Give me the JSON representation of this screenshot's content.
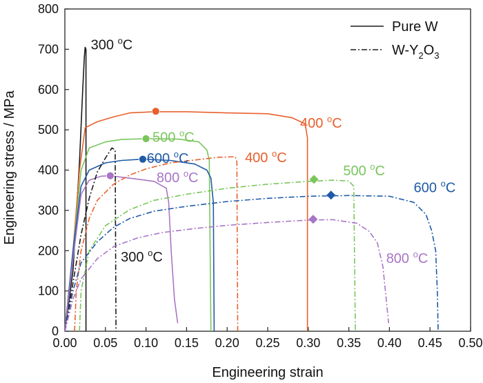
{
  "chart_data": {
    "type": "line",
    "title": "",
    "xlabel": "Engineering strain",
    "ylabel": "Engineering stress / MPa",
    "xlim": [
      0,
      0.5
    ],
    "ylim": [
      0,
      800
    ],
    "xticks": [
      "0.00",
      "0.05",
      "0.10",
      "0.15",
      "0.20",
      "0.25",
      "0.30",
      "0.35",
      "0.40",
      "0.45",
      "0.50"
    ],
    "yticks": [
      "0",
      "100",
      "200",
      "300",
      "400",
      "500",
      "600",
      "700",
      "800"
    ],
    "grid": false,
    "legend": {
      "position": "top-right",
      "entries": [
        {
          "label": "Pure W",
          "dash": "solid"
        },
        {
          "label": "W-Y",
          "sub": "2",
          "label2": "O",
          "sub2": "3",
          "dash": "dashdot"
        }
      ]
    },
    "colors": {
      "black": "#1a1a1a",
      "orange": "#e8602c",
      "green": "#7ac55c",
      "blue": "#1f5aa6",
      "purple": "#a875c6"
    },
    "series": [
      {
        "material": "Pure W",
        "temperature": "300 °C",
        "color": "black",
        "dash": "solid",
        "points": [
          [
            0.0,
            0
          ],
          [
            0.01,
            150
          ],
          [
            0.018,
            420
          ],
          [
            0.022,
            600
          ],
          [
            0.024,
            680
          ],
          [
            0.025,
            705
          ],
          [
            0.026,
            700
          ],
          [
            0.026,
            0
          ]
        ]
      },
      {
        "material": "Pure W",
        "temperature": "400 °C",
        "color": "orange",
        "dash": "solid",
        "points": [
          [
            0.0,
            0
          ],
          [
            0.01,
            200
          ],
          [
            0.018,
            400
          ],
          [
            0.025,
            505
          ],
          [
            0.04,
            520
          ],
          [
            0.06,
            532
          ],
          [
            0.08,
            542
          ],
          [
            0.11,
            545
          ],
          [
            0.15,
            545
          ],
          [
            0.2,
            542
          ],
          [
            0.25,
            540
          ],
          [
            0.28,
            530
          ],
          [
            0.296,
            515
          ],
          [
            0.299,
            480
          ],
          [
            0.299,
            0
          ]
        ],
        "marker": {
          "shape": "circle",
          "x": 0.112,
          "y": 546
        }
      },
      {
        "material": "Pure W",
        "temperature": "500 °C",
        "color": "green",
        "dash": "solid",
        "points": [
          [
            0.0,
            0
          ],
          [
            0.01,
            200
          ],
          [
            0.02,
            400
          ],
          [
            0.03,
            455
          ],
          [
            0.05,
            470
          ],
          [
            0.07,
            476
          ],
          [
            0.1,
            478
          ],
          [
            0.14,
            477
          ],
          [
            0.165,
            470
          ],
          [
            0.175,
            450
          ],
          [
            0.178,
            425
          ],
          [
            0.18,
            0
          ]
        ],
        "marker": {
          "shape": "circle",
          "x": 0.1,
          "y": 478
        }
      },
      {
        "material": "Pure W",
        "temperature": "600 °C",
        "color": "blue",
        "dash": "solid",
        "points": [
          [
            0.0,
            0
          ],
          [
            0.01,
            200
          ],
          [
            0.02,
            360
          ],
          [
            0.03,
            400
          ],
          [
            0.05,
            418
          ],
          [
            0.07,
            424
          ],
          [
            0.095,
            427
          ],
          [
            0.13,
            424
          ],
          [
            0.16,
            415
          ],
          [
            0.175,
            400
          ],
          [
            0.18,
            380
          ],
          [
            0.183,
            320
          ],
          [
            0.184,
            0
          ]
        ],
        "marker": {
          "shape": "circle",
          "x": 0.096,
          "y": 427
        }
      },
      {
        "material": "Pure W",
        "temperature": "800 °C",
        "color": "purple",
        "dash": "solid",
        "points": [
          [
            0.0,
            0
          ],
          [
            0.01,
            180
          ],
          [
            0.02,
            340
          ],
          [
            0.03,
            375
          ],
          [
            0.045,
            385
          ],
          [
            0.055,
            386
          ],
          [
            0.08,
            380
          ],
          [
            0.11,
            372
          ],
          [
            0.125,
            355
          ],
          [
            0.128,
            320
          ],
          [
            0.131,
            200
          ],
          [
            0.135,
            80
          ],
          [
            0.139,
            20
          ]
        ],
        "marker": {
          "shape": "circle",
          "x": 0.056,
          "y": 386
        }
      },
      {
        "material": "W-Y2O3",
        "temperature": "300 °C",
        "color": "black",
        "dash": "dashdot",
        "points": [
          [
            0.0,
            0
          ],
          [
            0.01,
            120
          ],
          [
            0.02,
            240
          ],
          [
            0.03,
            330
          ],
          [
            0.04,
            395
          ],
          [
            0.05,
            430
          ],
          [
            0.058,
            455
          ],
          [
            0.062,
            450
          ],
          [
            0.063,
            0
          ]
        ]
      },
      {
        "material": "W-Y2O3",
        "temperature": "400 °C",
        "color": "orange",
        "dash": "dashdot",
        "points": [
          [
            0.012,
            0
          ],
          [
            0.014,
            100
          ],
          [
            0.02,
            200
          ],
          [
            0.03,
            280
          ],
          [
            0.04,
            325
          ],
          [
            0.06,
            365
          ],
          [
            0.08,
            388
          ],
          [
            0.1,
            403
          ],
          [
            0.13,
            418
          ],
          [
            0.16,
            425
          ],
          [
            0.19,
            432
          ],
          [
            0.21,
            433
          ],
          [
            0.212,
            420
          ],
          [
            0.213,
            0
          ]
        ]
      },
      {
        "material": "W-Y2O3",
        "temperature": "500 °C",
        "color": "green",
        "dash": "dashdot",
        "points": [
          [
            0.018,
            0
          ],
          [
            0.02,
            100
          ],
          [
            0.03,
            200
          ],
          [
            0.05,
            262
          ],
          [
            0.08,
            302
          ],
          [
            0.11,
            325
          ],
          [
            0.15,
            340
          ],
          [
            0.2,
            355
          ],
          [
            0.25,
            365
          ],
          [
            0.3,
            372
          ],
          [
            0.33,
            375
          ],
          [
            0.35,
            373
          ],
          [
            0.356,
            360
          ],
          [
            0.358,
            0
          ]
        ],
        "marker": {
          "shape": "diamond",
          "x": 0.307,
          "y": 377
        }
      },
      {
        "material": "W-Y2O3",
        "temperature": "600 °C",
        "color": "blue",
        "dash": "dashdot",
        "points": [
          [
            0.0,
            0
          ],
          [
            0.01,
            100
          ],
          [
            0.02,
            170
          ],
          [
            0.04,
            222
          ],
          [
            0.06,
            258
          ],
          [
            0.08,
            280
          ],
          [
            0.11,
            298
          ],
          [
            0.15,
            310
          ],
          [
            0.2,
            322
          ],
          [
            0.25,
            330
          ],
          [
            0.3,
            335
          ],
          [
            0.35,
            337
          ],
          [
            0.4,
            335
          ],
          [
            0.43,
            320
          ],
          [
            0.445,
            290
          ],
          [
            0.452,
            250
          ],
          [
            0.457,
            200
          ],
          [
            0.459,
            100
          ],
          [
            0.46,
            0
          ]
        ],
        "marker": {
          "shape": "diamond",
          "x": 0.328,
          "y": 338
        }
      },
      {
        "material": "W-Y2O3",
        "temperature": "800 °C",
        "color": "purple",
        "dash": "dashdot",
        "points": [
          [
            0.0,
            0
          ],
          [
            0.01,
            80
          ],
          [
            0.02,
            130
          ],
          [
            0.04,
            180
          ],
          [
            0.06,
            210
          ],
          [
            0.09,
            232
          ],
          [
            0.12,
            245
          ],
          [
            0.16,
            255
          ],
          [
            0.2,
            263
          ],
          [
            0.25,
            270
          ],
          [
            0.3,
            276
          ],
          [
            0.33,
            277
          ],
          [
            0.36,
            268
          ],
          [
            0.375,
            248
          ],
          [
            0.385,
            220
          ],
          [
            0.392,
            160
          ],
          [
            0.396,
            80
          ],
          [
            0.399,
            20
          ]
        ],
        "marker": {
          "shape": "diamond",
          "x": 0.306,
          "y": 278
        }
      }
    ],
    "annotations": [
      {
        "text": "300 ",
        "sup": "o",
        "unit": "C",
        "color": "black",
        "x": 0.032,
        "y": 700
      },
      {
        "text": "400 ",
        "sup": "o",
        "unit": "C",
        "color": "orange",
        "x": 0.29,
        "y": 505
      },
      {
        "text": "500 ",
        "sup": "o",
        "unit": "C",
        "color": "green",
        "x": 0.108,
        "y": 470
      },
      {
        "text": "600 ",
        "sup": "o",
        "unit": "C",
        "color": "blue",
        "x": 0.101,
        "y": 418
      },
      {
        "text": "800 ",
        "sup": "o",
        "unit": "C",
        "color": "purple",
        "x": 0.113,
        "y": 370
      },
      {
        "text": "400 ",
        "sup": "o",
        "unit": "C",
        "color": "orange",
        "x": 0.222,
        "y": 420
      },
      {
        "text": "500 ",
        "sup": "o",
        "unit": "C",
        "color": "green",
        "x": 0.343,
        "y": 387
      },
      {
        "text": "600 ",
        "sup": "o",
        "unit": "C",
        "color": "blue",
        "x": 0.43,
        "y": 345
      },
      {
        "text": "800 ",
        "sup": "o",
        "unit": "C",
        "color": "purple",
        "x": 0.396,
        "y": 170
      },
      {
        "text": "300 ",
        "sup": "o",
        "unit": "C",
        "color": "black",
        "x": 0.069,
        "y": 173
      }
    ]
  }
}
